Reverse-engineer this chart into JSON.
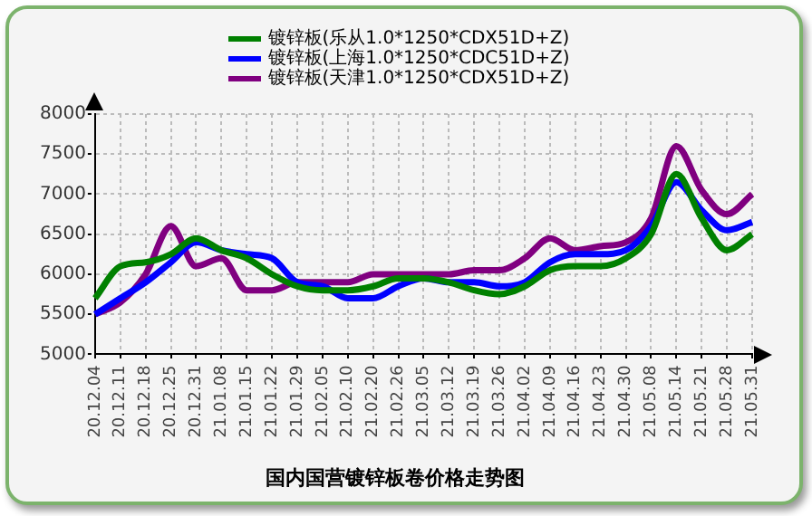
{
  "chart_data": {
    "type": "line",
    "title": "国内国营镀锌板卷价格走势图",
    "categories": [
      "20.12.04",
      "20.12.11",
      "20.12.18",
      "20.12.25",
      "20.12.31",
      "21.01.08",
      "21.01.15",
      "21.01.22",
      "21.01.29",
      "21.02.05",
      "21.02.10",
      "21.02.20",
      "21.02.26",
      "21.03.05",
      "21.03.12",
      "21.03.19",
      "21.03.26",
      "21.04.02",
      "21.04.09",
      "21.04.16",
      "21.04.23",
      "21.04.30",
      "21.05.08",
      "21.05.14",
      "21.05.21",
      "21.05.28",
      "21.05.31"
    ],
    "series": [
      {
        "name": "镀锌板(乐从1.0*1250*CDX51D+Z)",
        "color": "#008000",
        "values": [
          5700,
          6100,
          6150,
          6250,
          6450,
          6300,
          6200,
          6000,
          5850,
          5800,
          5800,
          5850,
          5950,
          5950,
          5900,
          5800,
          5750,
          5850,
          6050,
          6100,
          6100,
          6200,
          6500,
          7250,
          6700,
          6300,
          6500
        ]
      },
      {
        "name": "镀锌板(上海1.0*1250*CDC51D+Z)",
        "color": "#0000ff",
        "values": [
          5500,
          5700,
          5900,
          6150,
          6400,
          6300,
          6250,
          6200,
          5900,
          5850,
          5700,
          5700,
          5850,
          5950,
          5900,
          5900,
          5850,
          5900,
          6150,
          6250,
          6250,
          6300,
          6600,
          7150,
          6800,
          6550,
          6650
        ]
      },
      {
        "name": "镀锌板(天津1.0*1250*CDX51D+Z)",
        "color": "#800080",
        "values": [
          5500,
          5650,
          6000,
          6600,
          6100,
          6200,
          5800,
          5800,
          5900,
          5900,
          5900,
          6000,
          6000,
          6000,
          6000,
          6050,
          6050,
          6200,
          6450,
          6300,
          6350,
          6400,
          6700,
          7600,
          7050,
          6750,
          7000
        ]
      }
    ],
    "ylim": [
      5000,
      8000
    ],
    "yticks": [
      5000,
      5500,
      6000,
      6500,
      7000,
      7500,
      8000
    ],
    "grid": true,
    "legend": "top",
    "marker": "none",
    "line_style": "solid"
  }
}
